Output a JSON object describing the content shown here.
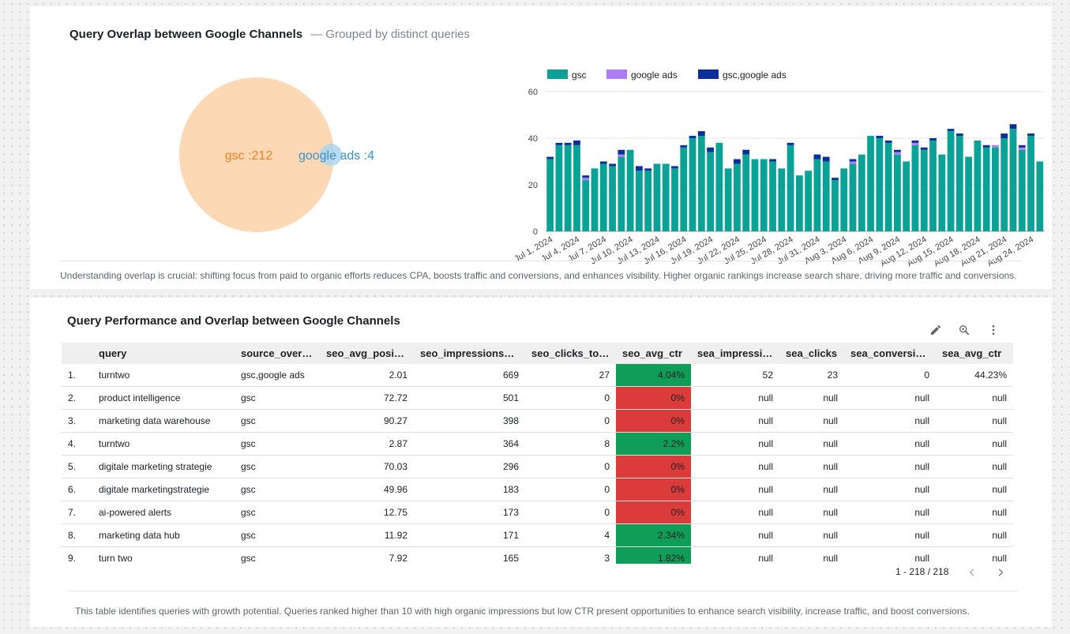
{
  "overlap_card": {
    "title": "Query Overlap between Google Channels",
    "subtitle": "— Grouped by distinct queries",
    "venn": {
      "gsc_label": "gsc :212",
      "ads_label": "google ads :4",
      "gsc_color": "#fdd8b5",
      "gsc_text_color": "#f5811f",
      "ads_color": "#a9d6ee",
      "ads_text_color": "#3a93c8"
    },
    "footnote": "Understanding overlap is crucial: shifting focus from paid to organic efforts reduces CPA, boosts traffic and conversions, and enhances visibility. Higher organic rankings increase search share, driving more traffic and conversions."
  },
  "chart_data": {
    "type": "bar",
    "stacked": true,
    "legend_position": "top-left",
    "grid": true,
    "ylim": [
      0,
      60
    ],
    "yticks": [
      0,
      20,
      40,
      60
    ],
    "x_tick_labels": [
      "Jul 1, 2024",
      "Jul 4, 2024",
      "Jul 7, 2024",
      "Jul 10, 2024",
      "Jul 13, 2024",
      "Jul 16, 2024",
      "Jul 19, 2024",
      "Jul 22, 2024",
      "Jul 25, 2024",
      "Jul 28, 2024",
      "Jul 31, 2024",
      "Aug 3, 2024",
      "Aug 6, 2024",
      "Aug 9, 2024",
      "Aug 12, 2024",
      "Aug 15, 2024",
      "Aug 18, 2024",
      "Aug 21, 2024",
      "Aug 24, 2024"
    ],
    "categories": [
      "2024-07-01",
      "2024-07-02",
      "2024-07-03",
      "2024-07-04",
      "2024-07-05",
      "2024-07-06",
      "2024-07-07",
      "2024-07-08",
      "2024-07-09",
      "2024-07-10",
      "2024-07-11",
      "2024-07-12",
      "2024-07-13",
      "2024-07-14",
      "2024-07-15",
      "2024-07-16",
      "2024-07-17",
      "2024-07-18",
      "2024-07-19",
      "2024-07-20",
      "2024-07-21",
      "2024-07-22",
      "2024-07-23",
      "2024-07-24",
      "2024-07-25",
      "2024-07-26",
      "2024-07-27",
      "2024-07-28",
      "2024-07-29",
      "2024-07-30",
      "2024-07-31",
      "2024-08-01",
      "2024-08-02",
      "2024-08-03",
      "2024-08-04",
      "2024-08-05",
      "2024-08-06",
      "2024-08-07",
      "2024-08-08",
      "2024-08-09",
      "2024-08-10",
      "2024-08-11",
      "2024-08-12",
      "2024-08-13",
      "2024-08-14",
      "2024-08-15",
      "2024-08-16",
      "2024-08-17",
      "2024-08-18",
      "2024-08-19",
      "2024-08-20",
      "2024-08-21",
      "2024-08-22",
      "2024-08-23",
      "2024-08-24",
      "2024-08-25",
      "2024-08-26",
      "2024-08-27"
    ],
    "series": [
      {
        "name": "gsc",
        "color": "#0aa197",
        "values": [
          31,
          37,
          37,
          37,
          22,
          27,
          29,
          28,
          32,
          35,
          26,
          26,
          29,
          29,
          27,
          36,
          40,
          41,
          34,
          38,
          27,
          29,
          33,
          31,
          31,
          30,
          27,
          37,
          24,
          26,
          31,
          30,
          22,
          27,
          29,
          33,
          41,
          40,
          38,
          33,
          30,
          37,
          35,
          39,
          33,
          43,
          41,
          32,
          39,
          36,
          36,
          40,
          44,
          35,
          41,
          30,
          28,
          0
        ]
      },
      {
        "name": "google ads",
        "color": "#ad7cf7",
        "values": [
          0,
          0,
          0,
          0,
          1,
          0,
          0,
          0,
          1,
          0,
          0,
          0,
          0,
          0,
          0,
          0,
          0,
          0,
          0,
          0,
          0,
          0,
          0,
          0,
          0,
          0,
          0,
          0,
          0,
          0,
          0,
          0,
          0,
          0,
          1,
          0,
          0,
          0,
          0,
          1,
          0,
          1,
          0,
          0,
          0,
          0,
          0,
          0,
          0,
          0,
          1,
          0,
          0,
          1,
          0,
          0,
          0,
          1
        ]
      },
      {
        "name": "gsc,google ads",
        "color": "#0b2e9c",
        "values": [
          1,
          1,
          1,
          2,
          1,
          0,
          1,
          1,
          2,
          0,
          2,
          1,
          0,
          0,
          1,
          1,
          1,
          2,
          2,
          0,
          0,
          2,
          2,
          0,
          0,
          1,
          0,
          1,
          0,
          0,
          2,
          2,
          1,
          0,
          1,
          0,
          0,
          1,
          1,
          1,
          0,
          1,
          1,
          1,
          0,
          1,
          1,
          0,
          0,
          1,
          0,
          2,
          2,
          1,
          1,
          0,
          0,
          0
        ]
      }
    ]
  },
  "table_card": {
    "title": "Query Performance and Overlap between Google Channels",
    "toolbar": {
      "edit": "pencil-icon",
      "explore": "zoom-icon",
      "more": "more-vert-icon"
    },
    "columns": [
      "",
      "query",
      "source_overl…",
      "seo_avg_posit…",
      "seo_impressions_…",
      "seo_clicks_to…",
      "seo_avg_ctr",
      "sea_impressi…",
      "sea_clicks",
      "sea_conversi…",
      "sea_avg_ctr"
    ],
    "rows": [
      {
        "idx": "1.",
        "query": "turntwo",
        "source": "gsc,google ads",
        "pos": "2.01",
        "imp": "669",
        "clicks": "27",
        "ctr": "4.04%",
        "ctr_status": "good",
        "sea_imp": "52",
        "sea_clicks": "23",
        "sea_conv": "0",
        "sea_ctr": "44.23%"
      },
      {
        "idx": "2.",
        "query": "product intelligence",
        "source": "gsc",
        "pos": "72.72",
        "imp": "501",
        "clicks": "0",
        "ctr": "0%",
        "ctr_status": "bad",
        "sea_imp": "null",
        "sea_clicks": "null",
        "sea_conv": "null",
        "sea_ctr": "null"
      },
      {
        "idx": "3.",
        "query": "marketing data warehouse",
        "source": "gsc",
        "pos": "90.27",
        "imp": "398",
        "clicks": "0",
        "ctr": "0%",
        "ctr_status": "bad",
        "sea_imp": "null",
        "sea_clicks": "null",
        "sea_conv": "null",
        "sea_ctr": "null"
      },
      {
        "idx": "4.",
        "query": "turntwo",
        "source": "gsc",
        "pos": "2.87",
        "imp": "364",
        "clicks": "8",
        "ctr": "2.2%",
        "ctr_status": "good",
        "sea_imp": "null",
        "sea_clicks": "null",
        "sea_conv": "null",
        "sea_ctr": "null"
      },
      {
        "idx": "5.",
        "query": "digitale marketing strategie",
        "source": "gsc",
        "pos": "70.03",
        "imp": "296",
        "clicks": "0",
        "ctr": "0%",
        "ctr_status": "bad",
        "sea_imp": "null",
        "sea_clicks": "null",
        "sea_conv": "null",
        "sea_ctr": "null"
      },
      {
        "idx": "6.",
        "query": "digitale marketingstrategie",
        "source": "gsc",
        "pos": "49.96",
        "imp": "183",
        "clicks": "0",
        "ctr": "0%",
        "ctr_status": "bad",
        "sea_imp": "null",
        "sea_clicks": "null",
        "sea_conv": "null",
        "sea_ctr": "null"
      },
      {
        "idx": "7.",
        "query": "ai-powered alerts",
        "source": "gsc",
        "pos": "12.75",
        "imp": "173",
        "clicks": "0",
        "ctr": "0%",
        "ctr_status": "bad",
        "sea_imp": "null",
        "sea_clicks": "null",
        "sea_conv": "null",
        "sea_ctr": "null"
      },
      {
        "idx": "8.",
        "query": "marketing data hub",
        "source": "gsc",
        "pos": "11.92",
        "imp": "171",
        "clicks": "4",
        "ctr": "2.34%",
        "ctr_status": "good",
        "sea_imp": "null",
        "sea_clicks": "null",
        "sea_conv": "null",
        "sea_ctr": "null"
      },
      {
        "idx": "9.",
        "query": "turn two",
        "source": "gsc",
        "pos": "7.92",
        "imp": "165",
        "clicks": "3",
        "ctr": "1.82%",
        "ctr_status": "good",
        "sea_imp": "null",
        "sea_clicks": "null",
        "sea_conv": "null",
        "sea_ctr": "null"
      }
    ],
    "pagination": {
      "label": "1 - 218 / 218",
      "prev_icon": "chevron-left-icon",
      "next_icon": "chevron-right-icon"
    },
    "status_colors": {
      "good": "#0f9d58",
      "bad": "#db3b3b"
    },
    "footnote": "This table identifies queries with growth potential. Queries ranked higher than 10 with high organic impressions but low CTR present opportunities to enhance search visibility, increase traffic, and boost conversions."
  }
}
